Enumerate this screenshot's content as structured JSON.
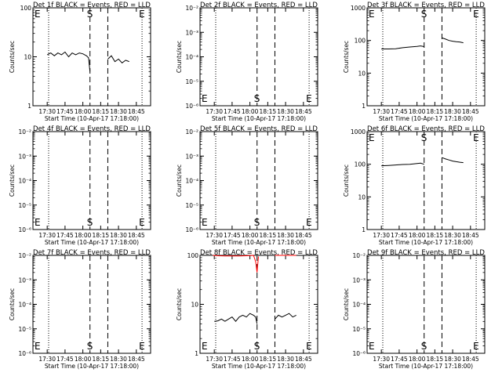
{
  "figure": {
    "ylabel": "Counts/sec",
    "xlabel": "Start Time (10-Apr-17 17:18:00)",
    "xticks": [
      "17:30",
      "17:45",
      "18:00",
      "18:15",
      "18:30",
      "18:45"
    ],
    "marker_labels": {
      "E": "E",
      "S": "S"
    },
    "colors": {
      "events": "#000000",
      "lld": "#ff0000"
    }
  },
  "chart_data": [
    {
      "type": "line",
      "title": "Det 1f BLACK = Events, RED = LLD",
      "ylog": true,
      "ylim": [
        1,
        100
      ],
      "yticks": [
        {
          "v": 1,
          "t": "1"
        },
        {
          "v": 10,
          "t": "10"
        },
        {
          "v": 100,
          "t": "100"
        }
      ],
      "series": [
        {
          "color": "black",
          "segments": [
            [
              [
                17.5,
                11
              ],
              [
                17.55,
                12
              ],
              [
                17.6,
                10.5
              ],
              [
                17.65,
                12
              ],
              [
                17.7,
                11
              ],
              [
                17.75,
                12.5
              ],
              [
                17.8,
                10
              ],
              [
                17.85,
                12
              ],
              [
                17.9,
                11
              ],
              [
                17.95,
                12
              ],
              [
                18.0,
                11.5
              ],
              [
                18.05,
                10.5
              ],
              [
                18.08,
                9.5
              ],
              [
                18.1,
                5
              ]
            ],
            [
              [
                18.35,
                9
              ],
              [
                18.4,
                10.5
              ],
              [
                18.45,
                8
              ],
              [
                18.5,
                9
              ],
              [
                18.55,
                7.5
              ],
              [
                18.6,
                8.5
              ],
              [
                18.65,
                8
              ]
            ]
          ]
        }
      ]
    },
    {
      "type": "line",
      "title": "Det 2f BLACK = Events, RED = LLD",
      "ylog": true,
      "ylim": [
        1e-06,
        0.01
      ],
      "yticks": [
        {
          "v": 1e-06,
          "t": "10⁻⁶"
        },
        {
          "v": 1e-05,
          "t": "10⁻⁵"
        },
        {
          "v": 0.0001,
          "t": "10⁻⁴"
        },
        {
          "v": 0.001,
          "t": "10⁻³"
        },
        {
          "v": 0.01,
          "t": "10⁻²"
        }
      ],
      "series": []
    },
    {
      "type": "line",
      "title": "Det 3f BLACK = Events, RED = LLD",
      "ylog": true,
      "ylim": [
        1,
        1000
      ],
      "yticks": [
        {
          "v": 1,
          "t": "1"
        },
        {
          "v": 10,
          "t": "10"
        },
        {
          "v": 100,
          "t": "100"
        },
        {
          "v": 1000,
          "t": "1000"
        }
      ],
      "series": [
        {
          "color": "black",
          "segments": [
            [
              [
                17.5,
                55
              ],
              [
                17.6,
                55
              ],
              [
                17.7,
                56
              ],
              [
                17.8,
                60
              ],
              [
                17.9,
                63
              ],
              [
                18.0,
                66
              ],
              [
                18.05,
                68
              ],
              [
                18.1,
                65
              ]
            ],
            [
              [
                18.35,
                120
              ],
              [
                18.4,
                110
              ],
              [
                18.45,
                100
              ],
              [
                18.5,
                95
              ],
              [
                18.55,
                92
              ],
              [
                18.6,
                90
              ],
              [
                18.65,
                85
              ]
            ]
          ]
        }
      ]
    },
    {
      "type": "line",
      "title": "Det 4f BLACK = Events, RED = LLD",
      "ylog": true,
      "ylim": [
        1e-06,
        0.01
      ],
      "yticks": [
        {
          "v": 1e-06,
          "t": "10⁻⁶"
        },
        {
          "v": 1e-05,
          "t": "10⁻⁵"
        },
        {
          "v": 0.0001,
          "t": "10⁻⁴"
        },
        {
          "v": 0.001,
          "t": "10⁻³"
        },
        {
          "v": 0.01,
          "t": "10⁻²"
        }
      ],
      "series": []
    },
    {
      "type": "line",
      "title": "Det 5f BLACK = Events, RED = LLD",
      "ylog": true,
      "ylim": [
        1e-06,
        0.01
      ],
      "yticks": [
        {
          "v": 1e-06,
          "t": "10⁻⁶"
        },
        {
          "v": 1e-05,
          "t": "10⁻⁵"
        },
        {
          "v": 0.0001,
          "t": "10⁻⁴"
        },
        {
          "v": 0.001,
          "t": "10⁻³"
        },
        {
          "v": 0.01,
          "t": "10⁻²"
        }
      ],
      "series": []
    },
    {
      "type": "line",
      "title": "Det 6f BLACK = Events, RED = LLD",
      "ylog": true,
      "ylim": [
        1,
        1000
      ],
      "yticks": [
        {
          "v": 1,
          "t": "1"
        },
        {
          "v": 10,
          "t": "10"
        },
        {
          "v": 100,
          "t": "100"
        },
        {
          "v": 1000,
          "t": "1000"
        }
      ],
      "series": [
        {
          "color": "black",
          "segments": [
            [
              [
                17.5,
                90
              ],
              [
                17.6,
                92
              ],
              [
                17.7,
                95
              ],
              [
                17.8,
                98
              ],
              [
                17.9,
                100
              ],
              [
                18.0,
                105
              ],
              [
                18.05,
                108
              ],
              [
                18.1,
                100
              ]
            ],
            [
              [
                18.35,
                160
              ],
              [
                18.4,
                145
              ],
              [
                18.45,
                135
              ],
              [
                18.5,
                125
              ],
              [
                18.55,
                120
              ],
              [
                18.6,
                115
              ],
              [
                18.65,
                112
              ]
            ]
          ]
        }
      ]
    },
    {
      "type": "line",
      "title": "Det 7f BLACK = Events, RED = LLD",
      "ylog": true,
      "ylim": [
        1e-06,
        0.01
      ],
      "yticks": [
        {
          "v": 1e-06,
          "t": "10⁻⁶"
        },
        {
          "v": 1e-05,
          "t": "10⁻⁵"
        },
        {
          "v": 0.0001,
          "t": "10⁻⁴"
        },
        {
          "v": 0.001,
          "t": "10⁻³"
        },
        {
          "v": 0.01,
          "t": "10⁻²"
        }
      ],
      "series": []
    },
    {
      "type": "line",
      "title": "Det 8f BLACK = Events, RED = LLD",
      "ylog": true,
      "ylim": [
        1,
        100
      ],
      "yticks": [
        {
          "v": 1,
          "t": "1"
        },
        {
          "v": 10,
          "t": "10"
        },
        {
          "v": 100,
          "t": "100"
        }
      ],
      "series": [
        {
          "color": "red",
          "segments": [
            [
              [
                17.48,
                100
              ],
              [
                17.55,
                98
              ],
              [
                17.65,
                97
              ],
              [
                17.75,
                97
              ],
              [
                17.85,
                97
              ],
              [
                17.95,
                98
              ],
              [
                18.0,
                99
              ],
              [
                18.05,
                100
              ],
              [
                18.08,
                75
              ],
              [
                18.1,
                45
              ],
              [
                18.12,
                95
              ]
            ],
            [
              [
                18.35,
                100
              ],
              [
                18.45,
                100
              ],
              [
                18.55,
                100
              ],
              [
                18.65,
                100
              ]
            ]
          ]
        },
        {
          "color": "black",
          "segments": [
            [
              [
                17.5,
                4.5
              ],
              [
                17.55,
                4.6
              ],
              [
                17.6,
                5
              ],
              [
                17.65,
                4.5
              ],
              [
                17.7,
                5
              ],
              [
                17.75,
                5.5
              ],
              [
                17.8,
                4.5
              ],
              [
                17.85,
                5.5
              ],
              [
                17.9,
                6
              ],
              [
                17.95,
                5.5
              ],
              [
                18.0,
                6.5
              ],
              [
                18.05,
                6
              ],
              [
                18.08,
                5.5
              ],
              [
                18.1,
                4
              ]
            ],
            [
              [
                18.35,
                5
              ],
              [
                18.4,
                6
              ],
              [
                18.45,
                5.5
              ],
              [
                18.5,
                6
              ],
              [
                18.55,
                6.5
              ],
              [
                18.6,
                5.5
              ],
              [
                18.65,
                6
              ]
            ]
          ]
        }
      ]
    },
    {
      "type": "line",
      "title": "Det 9f BLACK = Events, RED = LLD",
      "ylog": true,
      "ylim": [
        1e-06,
        0.01
      ],
      "yticks": [
        {
          "v": 1e-06,
          "t": "10⁻⁶"
        },
        {
          "v": 1e-05,
          "t": "10⁻⁵"
        },
        {
          "v": 0.0001,
          "t": "10⁻⁴"
        },
        {
          "v": 0.001,
          "t": "10⁻³"
        },
        {
          "v": 0.01,
          "t": "10⁻²"
        }
      ],
      "series": []
    }
  ]
}
